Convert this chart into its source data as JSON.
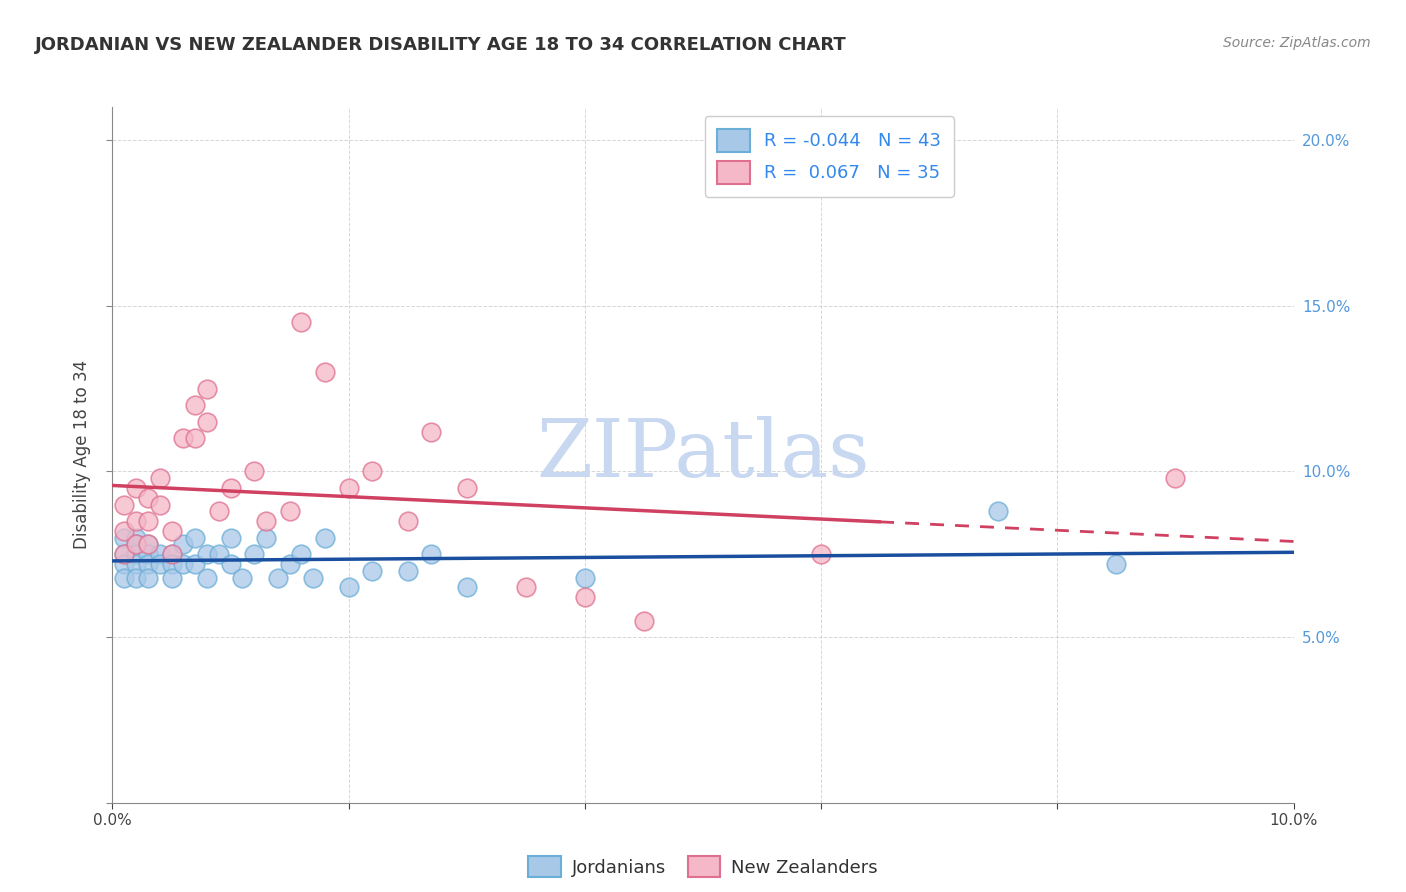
{
  "title": "JORDANIAN VS NEW ZEALANDER DISABILITY AGE 18 TO 34 CORRELATION CHART",
  "source": "Source: ZipAtlas.com",
  "ylabel": "Disability Age 18 to 34",
  "xlim": [
    0.0,
    0.1
  ],
  "ylim": [
    0.0,
    0.21
  ],
  "jordan_color": "#a8c8e8",
  "jordan_edge_color": "#6baed6",
  "nz_color": "#f4b8c8",
  "nz_edge_color": "#e07090",
  "jordan_line_color": "#1a4fa0",
  "nz_line_color": "#d04060",
  "watermark_text": "ZIPatlas",
  "watermark_color": "#c8d8f0",
  "R_jordan": -0.044,
  "N_jordan": 43,
  "R_nz": 0.067,
  "N_nz": 35,
  "jordan_x": [
    0.001,
    0.001,
    0.001,
    0.001,
    0.002,
    0.002,
    0.002,
    0.002,
    0.002,
    0.003,
    0.003,
    0.003,
    0.003,
    0.004,
    0.004,
    0.005,
    0.005,
    0.005,
    0.006,
    0.006,
    0.007,
    0.007,
    0.008,
    0.008,
    0.009,
    0.01,
    0.01,
    0.011,
    0.012,
    0.013,
    0.014,
    0.015,
    0.016,
    0.017,
    0.018,
    0.02,
    0.022,
    0.025,
    0.027,
    0.03,
    0.04,
    0.075,
    0.085
  ],
  "jordan_y": [
    0.08,
    0.075,
    0.072,
    0.068,
    0.08,
    0.078,
    0.075,
    0.072,
    0.068,
    0.078,
    0.075,
    0.072,
    0.068,
    0.075,
    0.072,
    0.075,
    0.072,
    0.068,
    0.078,
    0.072,
    0.08,
    0.072,
    0.075,
    0.068,
    0.075,
    0.08,
    0.072,
    0.068,
    0.075,
    0.08,
    0.068,
    0.072,
    0.075,
    0.068,
    0.08,
    0.065,
    0.07,
    0.07,
    0.075,
    0.065,
    0.068,
    0.088,
    0.072
  ],
  "nz_x": [
    0.001,
    0.001,
    0.001,
    0.002,
    0.002,
    0.002,
    0.003,
    0.003,
    0.003,
    0.004,
    0.004,
    0.005,
    0.005,
    0.006,
    0.007,
    0.007,
    0.008,
    0.008,
    0.009,
    0.01,
    0.012,
    0.013,
    0.015,
    0.016,
    0.018,
    0.02,
    0.022,
    0.025,
    0.027,
    0.03,
    0.035,
    0.04,
    0.045,
    0.06,
    0.09
  ],
  "nz_y": [
    0.09,
    0.082,
    0.075,
    0.095,
    0.085,
    0.078,
    0.092,
    0.085,
    0.078,
    0.098,
    0.09,
    0.082,
    0.075,
    0.11,
    0.12,
    0.11,
    0.125,
    0.115,
    0.088,
    0.095,
    0.1,
    0.085,
    0.088,
    0.145,
    0.13,
    0.095,
    0.1,
    0.085,
    0.112,
    0.095,
    0.065,
    0.062,
    0.055,
    0.075,
    0.098
  ]
}
